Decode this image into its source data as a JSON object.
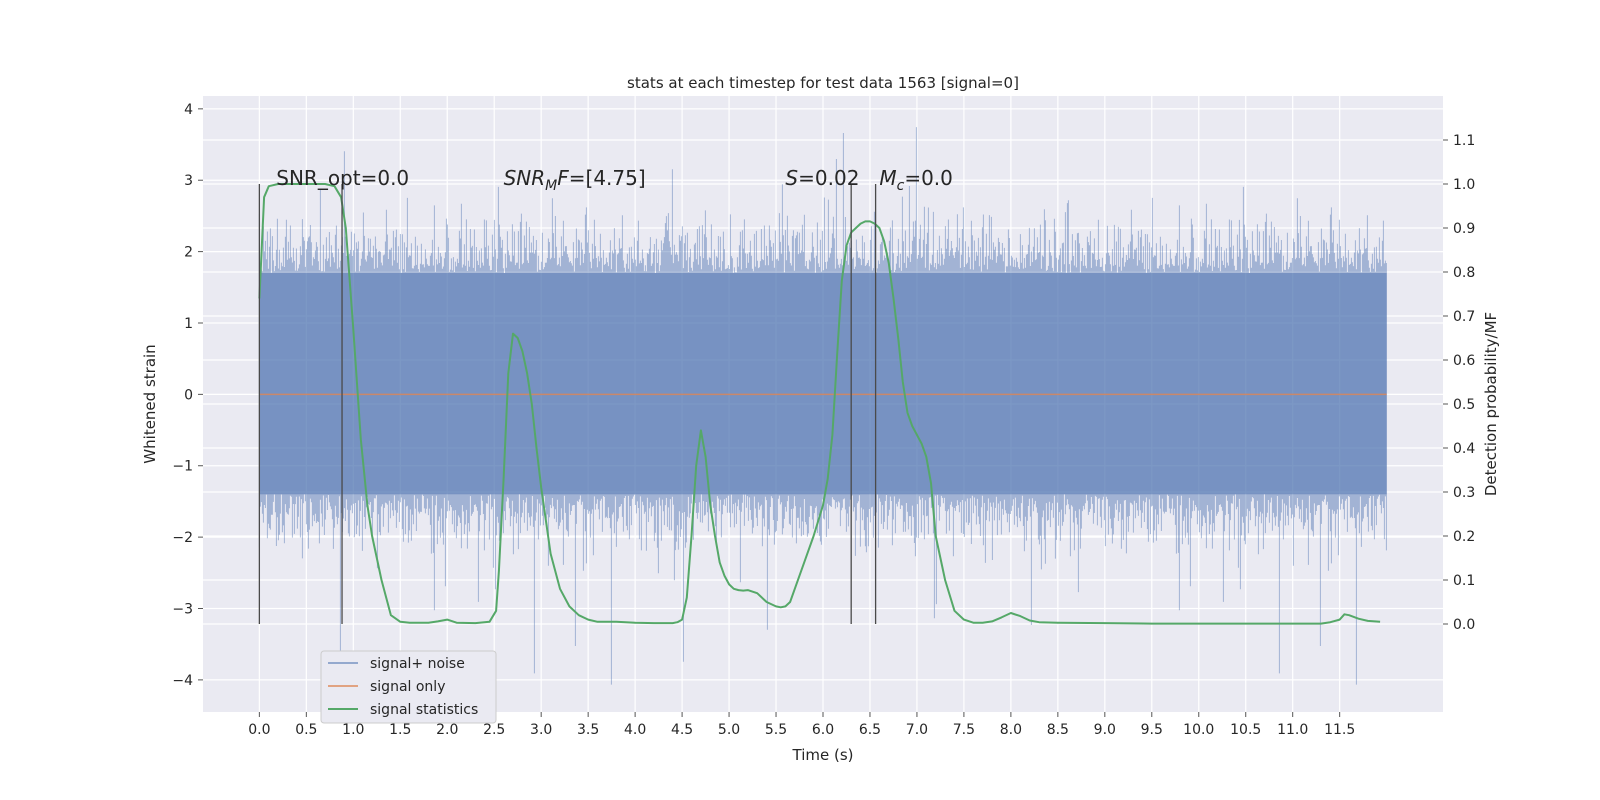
{
  "chart_data": {
    "type": "line",
    "title": "stats at each timestep for test data 1563 [signal=0]",
    "xlabel": "Time (s)",
    "ylabel_left": "Whitened strain",
    "ylabel_right": "Detection probability/MF",
    "xlim": [
      -0.6,
      12.6
    ],
    "ylim_left": [
      -4.45,
      4.18
    ],
    "ylim_right": [
      -0.2,
      1.2
    ],
    "x_ticks": [
      0.0,
      0.5,
      1.0,
      1.5,
      2.0,
      2.5,
      3.0,
      3.5,
      4.0,
      4.5,
      5.0,
      5.5,
      6.0,
      6.5,
      7.0,
      7.5,
      8.0,
      8.5,
      9.0,
      9.5,
      10.0,
      10.5,
      11.0,
      11.5
    ],
    "x_tick_labels": [
      "0.0",
      "0.5",
      "1.0",
      "1.5",
      "2.0",
      "2.5",
      "3.0",
      "3.5",
      "4.0",
      "4.5",
      "5.0",
      "5.5",
      "6.0",
      "6.5",
      "7.0",
      "7.5",
      "8.0",
      "8.5",
      "9.0",
      "9.5",
      "10.0",
      "10.5",
      "11.0",
      "11.5"
    ],
    "y_ticks_left": [
      -4,
      -3,
      -2,
      -1,
      0,
      1,
      2,
      3,
      4
    ],
    "y_tick_labels_left": [
      "−4",
      "−3",
      "−2",
      "−1",
      "0",
      "1",
      "2",
      "3",
      "4"
    ],
    "y_ticks_right": [
      0.0,
      0.1,
      0.2,
      0.3,
      0.4,
      0.5,
      0.6,
      0.7,
      0.8,
      0.9,
      1.0,
      1.1
    ],
    "y_tick_labels_right": [
      "0.0",
      "0.1",
      "0.2",
      "0.3",
      "0.4",
      "0.5",
      "0.6",
      "0.7",
      "0.8",
      "0.9",
      "1.0",
      "1.1"
    ],
    "grid": true,
    "legend_position": "lower-left",
    "series": [
      {
        "name": "signal+ noise",
        "axis": "left",
        "color": "#4c72b0",
        "style": "noise",
        "x_range": [
          0.0,
          12.0
        ],
        "typical_range": [
          -1.4,
          1.7
        ],
        "extreme_range": [
          -4.1,
          3.8
        ]
      },
      {
        "name": "signal only",
        "axis": "left",
        "color": "#dd8452",
        "x": [
          0.0,
          12.0
        ],
        "y": [
          0.0,
          0.0
        ]
      },
      {
        "name": "signal statistics",
        "axis": "right",
        "color": "#55a868",
        "x": [
          0.0,
          0.05,
          0.1,
          0.2,
          0.3,
          0.5,
          0.7,
          0.8,
          0.87,
          0.92,
          1.0,
          1.08,
          1.15,
          1.2,
          1.3,
          1.35,
          1.4,
          1.5,
          1.6,
          1.8,
          1.9,
          2.0,
          2.1,
          2.3,
          2.45,
          2.52,
          2.55,
          2.6,
          2.65,
          2.7,
          2.75,
          2.8,
          2.85,
          2.9,
          2.95,
          3.0,
          3.1,
          3.2,
          3.3,
          3.4,
          3.5,
          3.6,
          3.8,
          4.0,
          4.2,
          4.4,
          4.45,
          4.5,
          4.55,
          4.6,
          4.65,
          4.7,
          4.75,
          4.8,
          4.85,
          4.9,
          4.95,
          5.0,
          5.05,
          5.1,
          5.15,
          5.2,
          5.3,
          5.4,
          5.5,
          5.55,
          5.6,
          5.65,
          5.7,
          5.8,
          5.9,
          6.0,
          6.05,
          6.1,
          6.15,
          6.2,
          6.25,
          6.3,
          6.35,
          6.4,
          6.45,
          6.5,
          6.55,
          6.6,
          6.65,
          6.7,
          6.75,
          6.8,
          6.85,
          6.9,
          6.95,
          7.0,
          7.05,
          7.1,
          7.15,
          7.2,
          7.3,
          7.4,
          7.5,
          7.6,
          7.7,
          7.8,
          7.9,
          8.0,
          8.1,
          8.2,
          8.3,
          8.5,
          9.0,
          9.5,
          10.0,
          10.5,
          11.0,
          11.3,
          11.4,
          11.5,
          11.55,
          11.6,
          11.7,
          11.8,
          11.93
        ],
        "y": [
          0.74,
          0.97,
          0.995,
          1.0,
          1.0,
          1.0,
          1.0,
          0.995,
          0.97,
          0.9,
          0.67,
          0.42,
          0.27,
          0.2,
          0.1,
          0.06,
          0.02,
          0.005,
          0.003,
          0.003,
          0.006,
          0.01,
          0.003,
          0.002,
          0.005,
          0.03,
          0.12,
          0.33,
          0.57,
          0.66,
          0.65,
          0.62,
          0.57,
          0.5,
          0.4,
          0.31,
          0.16,
          0.08,
          0.04,
          0.02,
          0.01,
          0.005,
          0.005,
          0.003,
          0.002,
          0.002,
          0.004,
          0.01,
          0.06,
          0.2,
          0.36,
          0.44,
          0.38,
          0.27,
          0.2,
          0.14,
          0.11,
          0.09,
          0.08,
          0.077,
          0.076,
          0.077,
          0.07,
          0.05,
          0.04,
          0.038,
          0.04,
          0.05,
          0.08,
          0.14,
          0.2,
          0.27,
          0.33,
          0.43,
          0.61,
          0.78,
          0.86,
          0.89,
          0.9,
          0.91,
          0.915,
          0.915,
          0.91,
          0.9,
          0.87,
          0.82,
          0.74,
          0.65,
          0.55,
          0.48,
          0.45,
          0.43,
          0.41,
          0.38,
          0.32,
          0.2,
          0.1,
          0.03,
          0.01,
          0.003,
          0.003,
          0.006,
          0.015,
          0.025,
          0.018,
          0.008,
          0.004,
          0.003,
          0.002,
          0.001,
          0.001,
          0.001,
          0.001,
          0.001,
          0.004,
          0.01,
          0.022,
          0.02,
          0.012,
          0.007,
          0.005
        ]
      }
    ],
    "vertical_markers": [
      0.0,
      0.88,
      6.3,
      6.56
    ],
    "annotations": [
      {
        "id": "snr-opt",
        "text": "SNR_opt=0.0",
        "x": 0.18,
        "y": 1.0
      },
      {
        "id": "snr-mf",
        "text": "SNR_MF=[4.75]",
        "main": "SNR",
        "sub": "M",
        "tail": "F=[4.75]",
        "x": 2.6,
        "y": 1.0
      },
      {
        "id": "s-stat",
        "text": "S=0.02",
        "main": "S",
        "tail": "=0.02",
        "x": 5.6,
        "y": 1.0
      },
      {
        "id": "mc",
        "text": "Mc=0.0",
        "main": "M",
        "sub": "c",
        "tail": "=0.0",
        "x": 6.6,
        "y": 1.0
      }
    ]
  }
}
